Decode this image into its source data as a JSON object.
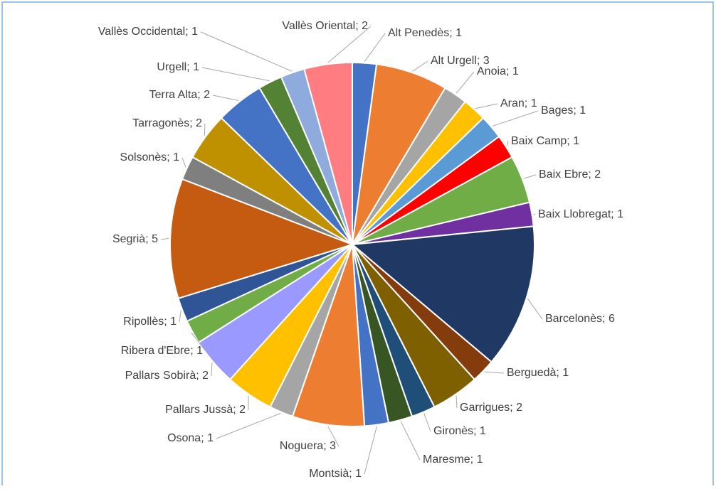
{
  "chart_data": {
    "type": "pie",
    "categories": [
      "Alt Penedès",
      "Alt Urgell",
      "Anoia",
      "Aran",
      "Bages",
      "Baix Camp",
      "Baix Ebre",
      "Baix Llobregat",
      "Barcelonès",
      "Berguedà",
      "Garrigues",
      "Gironès",
      "Maresme",
      "Montsià",
      "Noguera",
      "Osona",
      "Pallars Jussà",
      "Pallars Sobirà",
      "Ribera d'Ebre",
      "Ripollès",
      "Segrià",
      "Solsonès",
      "Tarragonès",
      "Terra Alta",
      "Urgell",
      "Vallès Occidental",
      "Vallès Oriental"
    ],
    "values": [
      1,
      3,
      1,
      1,
      1,
      1,
      2,
      1,
      6,
      1,
      2,
      1,
      1,
      1,
      3,
      1,
      2,
      2,
      1,
      1,
      5,
      1,
      2,
      2,
      1,
      1,
      2
    ],
    "value_labels": [
      "Alt Penedès; 1",
      "Alt Urgell; 3",
      "Anoia; 1",
      "Aran; 1",
      "Bages; 1",
      "Baix Camp; 1",
      "Baix Ebre; 2",
      "Baix Llobregat; 1",
      "Barcelonès; 6",
      "Berguedà; 1",
      "Garrigues; 2",
      "Gironès; 1",
      "Maresme; 1",
      "Montsià; 1",
      "Noguera; 3",
      "Osona; 1",
      "Pallars Jussà; 2",
      "Pallars Sobirà; 2",
      "Ribera d'Ebre; 1",
      "Ripollès; 1",
      "Segrià; 5",
      "Solsonès; 1",
      "Tarragonès; 2",
      "Terra Alta; 2",
      "Urgell; 1",
      "Vallès Occidental; 1",
      "Vallès Oriental; 2"
    ],
    "colors": [
      "#4472c4",
      "#ed7d31",
      "#a5a5a5",
      "#ffc000",
      "#5b9bd5",
      "#ff0000",
      "#70ad47",
      "#7030a0",
      "#203864",
      "#843c0c",
      "#7f6000",
      "#1f4e79",
      "#375623",
      "#4472c4",
      "#ed7d31",
      "#a5a5a5",
      "#ffc000",
      "#9999ff",
      "#70ad47",
      "#2f5597",
      "#c55a11",
      "#7f7f7f",
      "#bf9000",
      "#4472c4",
      "#548235",
      "#8faadc",
      "#ff7c80"
    ]
  }
}
